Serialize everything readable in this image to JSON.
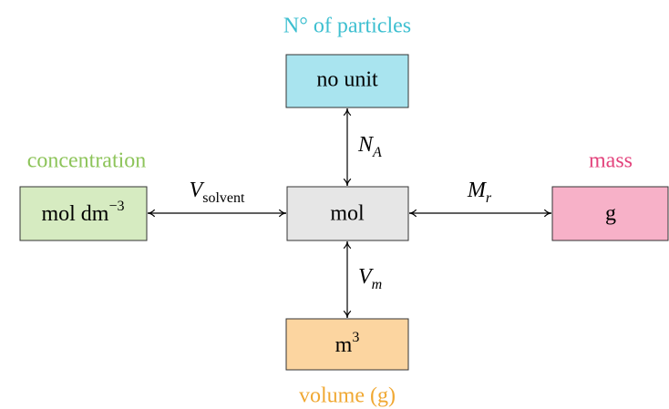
{
  "nodes": [
    {
      "caption": "N° of particles",
      "label": "no unit"
    },
    {
      "caption": "concentration",
      "label": "mol dm",
      "label_sup": "−3"
    },
    {
      "label": "mol"
    },
    {
      "caption": "mass",
      "label": "g"
    },
    {
      "caption": "volume (g)",
      "label": "m",
      "label_sup": "3"
    }
  ],
  "edges": [
    {
      "label": "N",
      "label_sub": "A"
    },
    {
      "label": "V",
      "label_sub": "solvent"
    },
    {
      "label": "M",
      "label_sub": "r"
    },
    {
      "label": "V",
      "label_sub": "m"
    }
  ]
}
